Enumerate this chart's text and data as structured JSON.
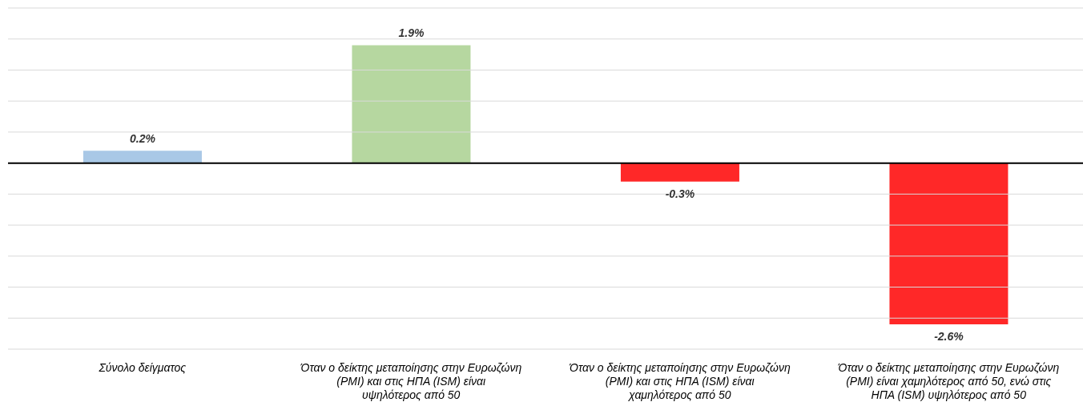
{
  "chart_data": {
    "type": "bar",
    "categories": [
      "Σύνολο δείγματος",
      "Όταν ο δείκτης μεταποίησης στην Ευρωζώνη (PMI) και στις ΗΠΑ (ISM) είναι υψηλότερος από 50",
      "Όταν ο δείκτης μεταποίησης στην Ευρωζώνη (PMI) και στις ΗΠΑ (ISM) είναι χαμηλότερος από 50",
      "Όταν ο δείκτης μεταποίησης στην Ευρωζώνη (PMI) είναι χαμηλότερος από 50, ενώ στις ΗΠΑ (ISM) υψηλότερος από 50"
    ],
    "values": [
      0.2,
      1.9,
      -0.3,
      -2.6
    ],
    "colors": [
      "#a9c8e6",
      "#b6d7a0",
      "#ff2828",
      "#ff2828"
    ],
    "value_labels": [
      "0.2%",
      "1.9%",
      "-0.3%",
      "-2.6%"
    ],
    "ylim": [
      -3,
      2.5
    ],
    "yticks": [
      {
        "value": -3,
        "label": null
      },
      {
        "value": -2.5,
        "label": null
      },
      {
        "value": -2,
        "label": null
      },
      {
        "value": -1.5,
        "label": null
      },
      {
        "value": -1,
        "label": null
      },
      {
        "value": -0.5,
        "label": null
      },
      {
        "value": 0,
        "label": null
      },
      {
        "value": 0.5,
        "label": null
      },
      {
        "value": 1,
        "label": null
      },
      {
        "value": 1.5,
        "label": null
      },
      {
        "value": 2,
        "label": null
      },
      {
        "value": 2.5,
        "label": null
      }
    ],
    "tick_labels": "x",
    "grid": "y",
    "ref_lines": [
      {
        "axis": "y",
        "value": 0,
        "color": "#000000"
      }
    ]
  }
}
